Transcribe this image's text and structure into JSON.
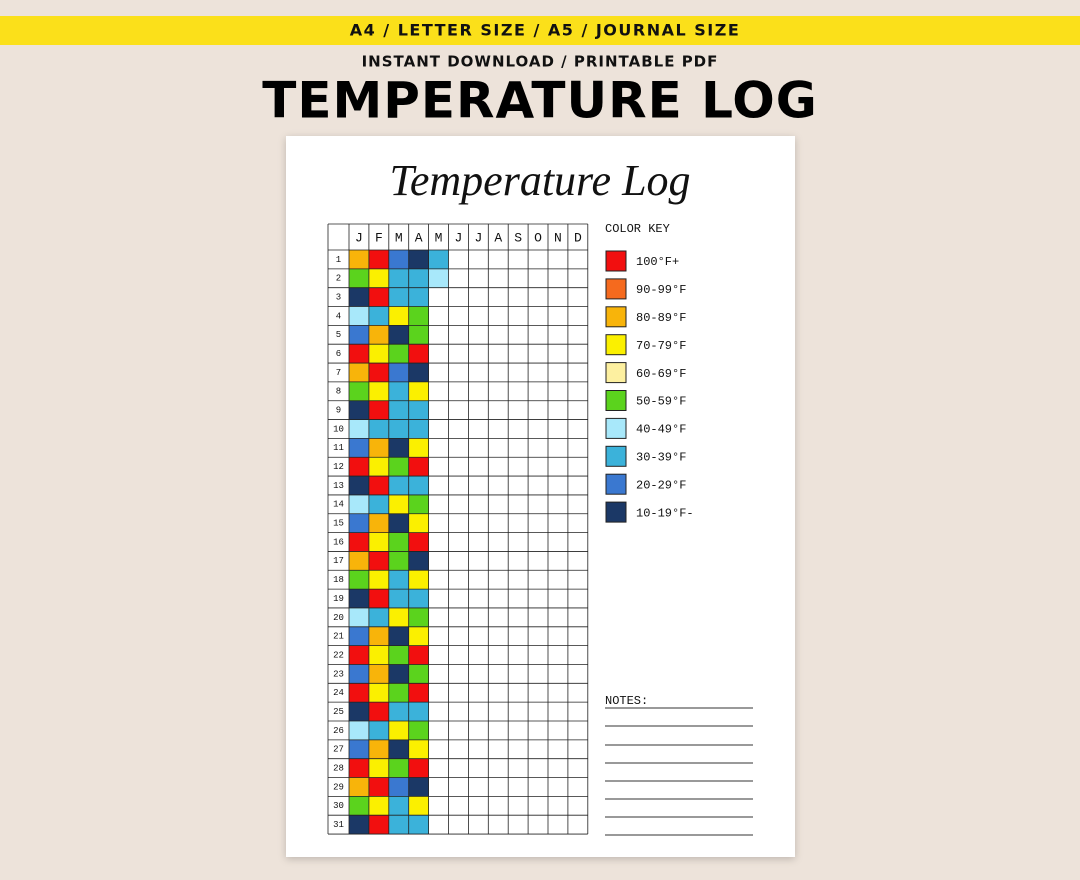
{
  "banner": "A4 / LETTER SIZE / A5 / JOURNAL SIZE",
  "subheading": "INSTANT DOWNLOAD / PRINTABLE PDF",
  "heading": "TEMPERATURE LOG",
  "sheet": {
    "title": "Temperature Log",
    "months": [
      "J",
      "F",
      "M",
      "A",
      "M",
      "J",
      "J",
      "A",
      "S",
      "O",
      "N",
      "D"
    ],
    "days": [
      1,
      2,
      3,
      4,
      5,
      6,
      7,
      8,
      9,
      10,
      11,
      12,
      13,
      14,
      15,
      16,
      17,
      18,
      19,
      20,
      21,
      22,
      23,
      24,
      25,
      26,
      27,
      28,
      29,
      30,
      31
    ],
    "log": [
      [
        2,
        5,
        9,
        6,
        8,
        0,
        2,
        5,
        9,
        6,
        8,
        0,
        9,
        6,
        8,
        0,
        2,
        5,
        9,
        6,
        8,
        0,
        8,
        0,
        9,
        6,
        8,
        0,
        2,
        5,
        9
      ],
      [
        0,
        3,
        0,
        7,
        2,
        3,
        0,
        3,
        0,
        7,
        2,
        3,
        0,
        7,
        2,
        3,
        0,
        3,
        0,
        7,
        2,
        3,
        2,
        3,
        0,
        7,
        2,
        3,
        0,
        3,
        0
      ],
      [
        8,
        7,
        7,
        3,
        9,
        5,
        8,
        7,
        7,
        7,
        9,
        5,
        7,
        3,
        9,
        5,
        5,
        7,
        7,
        3,
        9,
        5,
        9,
        5,
        7,
        3,
        9,
        5,
        8,
        7,
        7
      ],
      [
        9,
        7,
        7,
        5,
        5,
        0,
        9,
        3,
        7,
        7,
        3,
        0,
        7,
        5,
        3,
        0,
        9,
        3,
        7,
        5,
        3,
        0,
        5,
        0,
        7,
        5,
        3,
        0,
        9,
        3,
        7
      ],
      [
        7,
        6
      ]
    ],
    "color_key": {
      "title": "COLOR KEY",
      "items": [
        {
          "label": "100°F+",
          "color": "#f20f0f"
        },
        {
          "label": "90-99°F",
          "color": "#f56a1e"
        },
        {
          "label": "80-89°F",
          "color": "#f8b40a"
        },
        {
          "label": "70-79°F",
          "color": "#fbf000"
        },
        {
          "label": "60-69°F",
          "color": "#fdf0a0"
        },
        {
          "label": "50-59°F",
          "color": "#5bd31d"
        },
        {
          "label": "40-49°F",
          "color": "#a8e8fa"
        },
        {
          "label": "30-39°F",
          "color": "#3bb2da"
        },
        {
          "label": "20-29°F",
          "color": "#3a78d0"
        },
        {
          "label": "10-19°F-",
          "color": "#1b3866"
        }
      ]
    },
    "notes": {
      "title": "NOTES:"
    }
  }
}
